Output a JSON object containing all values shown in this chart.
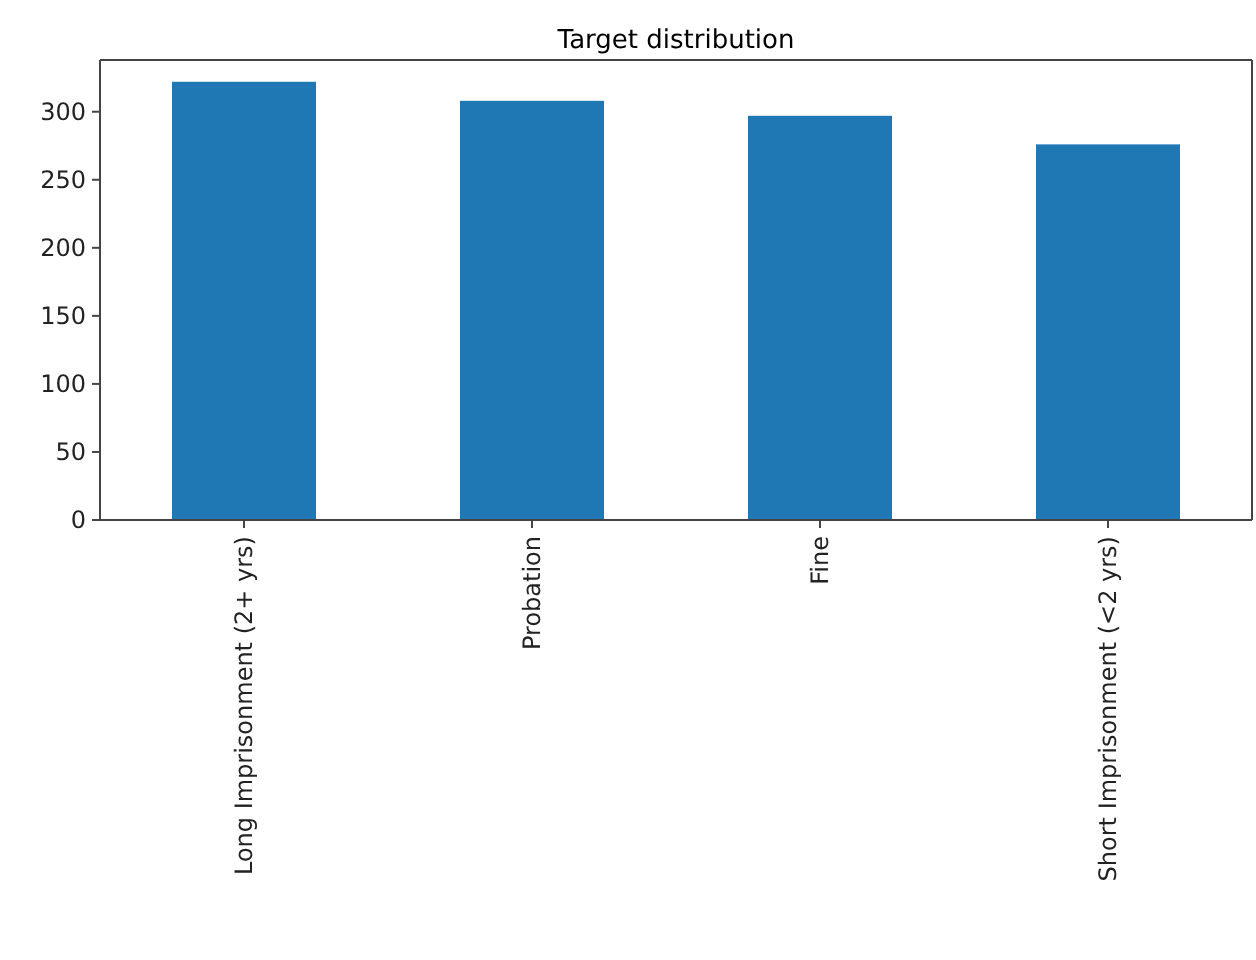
{
  "chart_data": {
    "type": "bar",
    "title": "Target distribution",
    "categories": [
      "Long Imprisonment (2+ yrs)",
      "Probation",
      "Fine",
      "Short Imprisonment (<2 yrs)"
    ],
    "values": [
      322,
      308,
      297,
      276
    ],
    "color": "#1f77b4",
    "ylim": [
      0,
      338
    ],
    "yticks": [
      0,
      50,
      100,
      150,
      200,
      250,
      300
    ],
    "grid": false
  }
}
